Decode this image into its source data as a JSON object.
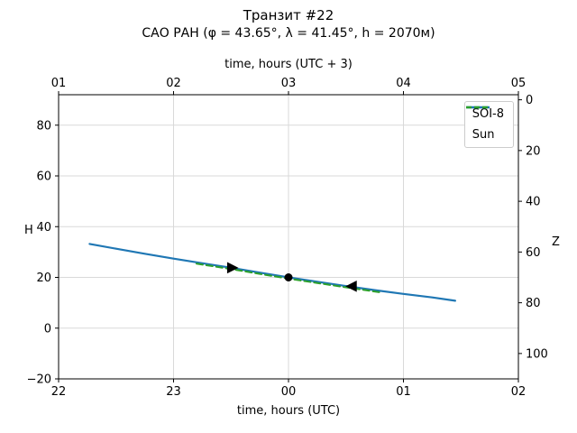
{
  "figure": {
    "background": "#ffffff",
    "grid_color": "#d9d9d9",
    "spine_color": "#000000",
    "tick_color": "#000000"
  },
  "chart_data": {
    "type": "line",
    "title": "Транзит #22",
    "subtitle": "САО РАН (φ = 43.65°, λ = 41.45°, h = 2070м)",
    "xlabel_bottom": "time, hours (UTC)",
    "xlabel_top": "time, hours (UTC + 3)",
    "ylabel_left": "H",
    "ylabel_right": "Z",
    "xlim": [
      22,
      26
    ],
    "ylim": [
      -20,
      92
    ],
    "x_ticks": [
      22,
      23,
      24,
      25,
      26
    ],
    "x_tick_labels_bottom": [
      "22",
      "23",
      "00",
      "01",
      "02"
    ],
    "x_tick_labels_top": [
      "01",
      "02",
      "03",
      "04",
      "05"
    ],
    "y_ticks_left": [
      -20,
      0,
      20,
      40,
      60,
      80
    ],
    "y_tick_labels_left": [
      "−20",
      "0",
      "20",
      "40",
      "60",
      "80"
    ],
    "z_ticks_right": [
      0,
      20,
      40,
      60,
      80,
      100
    ],
    "z_tick_labels_right": [
      "0",
      "20",
      "40",
      "60",
      "80",
      "100"
    ],
    "grid": true,
    "legend": {
      "position": "upper right",
      "entries": [
        {
          "label": "SOI-8",
          "color": "#1f77b4",
          "dash": "solid"
        },
        {
          "label": "Sun",
          "color": "#2ca02c",
          "dash": "dashed"
        }
      ]
    },
    "series": [
      {
        "name": "SOI-8",
        "color": "#1f77b4",
        "style": "solid",
        "width": 2.2,
        "x": [
          22.27,
          22.5,
          22.75,
          23.0,
          23.25,
          23.5,
          23.75,
          24.0,
          24.25,
          24.5,
          24.75,
          25.0,
          25.25,
          25.45
        ],
        "y": [
          33.2,
          31.3,
          29.3,
          27.4,
          25.6,
          23.8,
          21.9,
          20.0,
          18.3,
          16.6,
          15.0,
          13.5,
          12.1,
          10.8
        ]
      },
      {
        "name": "Sun",
        "color": "#2ca02c",
        "style": "dashed",
        "width": 2,
        "x": [
          23.2,
          23.5,
          23.75,
          24.0,
          24.25,
          24.5,
          24.8
        ],
        "y": [
          25.4,
          23.3,
          21.4,
          19.5,
          17.8,
          16.1,
          14.1
        ]
      }
    ],
    "markers": [
      {
        "type": "triangle-right",
        "x": 23.51,
        "y": 23.8,
        "color": "#000000",
        "size": 7
      },
      {
        "type": "dot",
        "x": 24.0,
        "y": 20.0,
        "color": "#000000",
        "size": 4.5
      },
      {
        "type": "triangle-left",
        "x": 24.55,
        "y": 16.5,
        "color": "#000000",
        "size": 7
      }
    ]
  }
}
